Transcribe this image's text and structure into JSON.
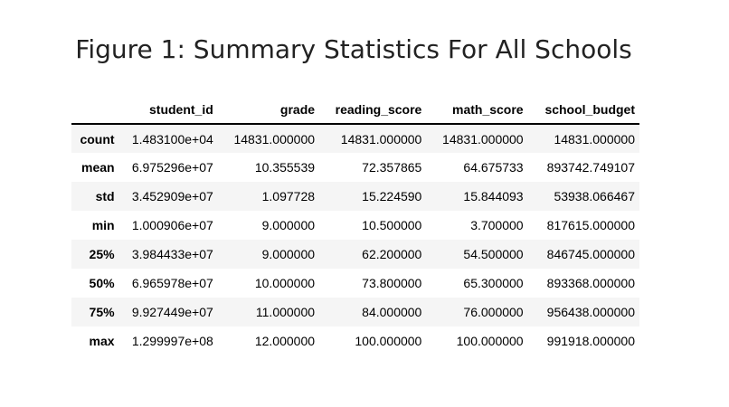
{
  "title": "Figure 1: Summary Statistics For All Schools",
  "table": {
    "index_header": "",
    "columns": [
      "student_id",
      "grade",
      "reading_score",
      "math_score",
      "school_budget"
    ],
    "rows": [
      {
        "label": "count",
        "values": [
          "1.483100e+04",
          "14831.000000",
          "14831.000000",
          "14831.000000",
          "14831.000000"
        ]
      },
      {
        "label": "mean",
        "values": [
          "6.975296e+07",
          "10.355539",
          "72.357865",
          "64.675733",
          "893742.749107"
        ]
      },
      {
        "label": "std",
        "values": [
          "3.452909e+07",
          "1.097728",
          "15.224590",
          "15.844093",
          "53938.066467"
        ]
      },
      {
        "label": "min",
        "values": [
          "1.000906e+07",
          "9.000000",
          "10.500000",
          "3.700000",
          "817615.000000"
        ]
      },
      {
        "label": "25%",
        "values": [
          "3.984433e+07",
          "9.000000",
          "62.200000",
          "54.500000",
          "846745.000000"
        ]
      },
      {
        "label": "50%",
        "values": [
          "6.965978e+07",
          "10.000000",
          "73.800000",
          "65.300000",
          "893368.000000"
        ]
      },
      {
        "label": "75%",
        "values": [
          "9.927449e+07",
          "11.000000",
          "84.000000",
          "76.000000",
          "956438.000000"
        ]
      },
      {
        "label": "max",
        "values": [
          "1.299997e+08",
          "12.000000",
          "100.000000",
          "100.000000",
          "991918.000000"
        ]
      }
    ]
  }
}
